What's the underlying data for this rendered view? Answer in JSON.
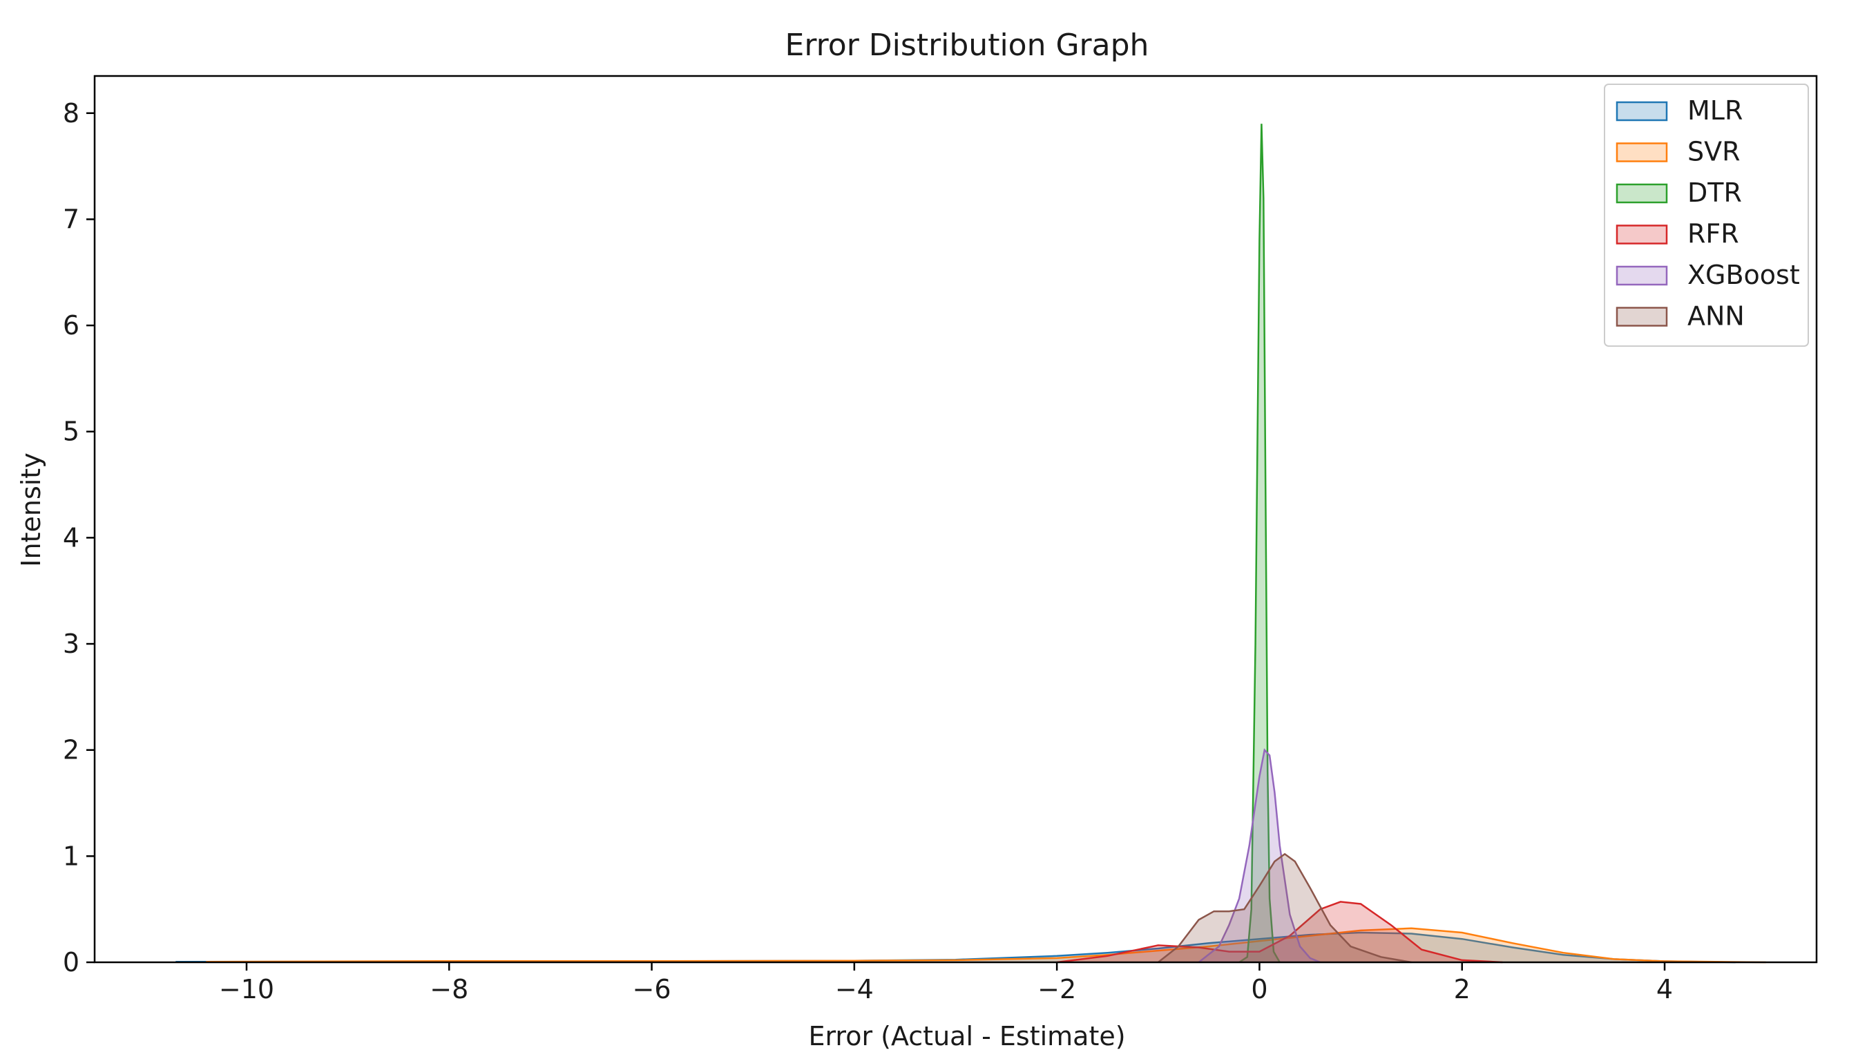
{
  "chart_data": {
    "type": "area",
    "title": "Error Distribution Graph",
    "xlabel": "Error (Actual - Estimate)",
    "ylabel": "Intensity",
    "xlim": [
      -11.5,
      5.5
    ],
    "ylim": [
      0,
      8.35
    ],
    "xticks": [
      -10,
      -8,
      -6,
      -4,
      -2,
      0,
      2,
      4
    ],
    "xtick_labels": [
      "−10",
      "−8",
      "−6",
      "−4",
      "−2",
      "0",
      "2",
      "4"
    ],
    "yticks": [
      0,
      1,
      2,
      3,
      4,
      5,
      6,
      7,
      8
    ],
    "ytick_labels": [
      "0",
      "1",
      "2",
      "3",
      "4",
      "5",
      "6",
      "7",
      "8"
    ],
    "grid": false,
    "legend_position": "top-right",
    "series": [
      {
        "name": "MLR",
        "color": "#1f77b4",
        "x": [
          -10.7,
          -8,
          -6,
          -4,
          -3,
          -2,
          -1.5,
          -1,
          -0.5,
          0,
          0.5,
          1,
          1.5,
          2,
          2.5,
          3,
          3.5,
          4,
          4.7
        ],
        "y": [
          0.005,
          0.008,
          0.01,
          0.015,
          0.025,
          0.06,
          0.09,
          0.13,
          0.18,
          0.22,
          0.26,
          0.28,
          0.27,
          0.22,
          0.14,
          0.07,
          0.03,
          0.01,
          0.0
        ]
      },
      {
        "name": "SVR",
        "color": "#ff7f0e",
        "x": [
          -10.4,
          -8,
          -6,
          -4,
          -3,
          -2,
          -1.5,
          -1,
          -0.5,
          0,
          0.5,
          1,
          1.5,
          2,
          2.5,
          3,
          3.5,
          4,
          5.0
        ],
        "y": [
          0.005,
          0.012,
          0.012,
          0.015,
          0.02,
          0.04,
          0.07,
          0.11,
          0.15,
          0.2,
          0.25,
          0.3,
          0.32,
          0.28,
          0.18,
          0.09,
          0.03,
          0.01,
          0.0
        ]
      },
      {
        "name": "DTR",
        "color": "#2ca02c",
        "x": [
          -0.2,
          -0.12,
          -0.08,
          -0.04,
          0.0,
          0.02,
          0.04,
          0.06,
          0.08,
          0.1,
          0.14,
          0.2
        ],
        "y": [
          0.0,
          0.05,
          0.5,
          3.0,
          6.8,
          7.9,
          7.2,
          4.5,
          1.8,
          0.6,
          0.1,
          0.0
        ]
      },
      {
        "name": "RFR",
        "color": "#d62728",
        "x": [
          -2.0,
          -1.5,
          -1.0,
          -0.6,
          -0.3,
          0.0,
          0.3,
          0.6,
          0.8,
          1.0,
          1.3,
          1.6,
          2.0,
          2.4
        ],
        "y": [
          0.0,
          0.06,
          0.16,
          0.14,
          0.1,
          0.1,
          0.25,
          0.5,
          0.57,
          0.55,
          0.35,
          0.12,
          0.02,
          0.0
        ]
      },
      {
        "name": "XGBoost",
        "color": "#9467bd",
        "x": [
          -0.6,
          -0.4,
          -0.3,
          -0.2,
          -0.1,
          0.0,
          0.05,
          0.1,
          0.15,
          0.2,
          0.3,
          0.4,
          0.5,
          0.6
        ],
        "y": [
          0.0,
          0.15,
          0.35,
          0.6,
          1.1,
          1.75,
          2.0,
          1.95,
          1.6,
          1.1,
          0.45,
          0.15,
          0.04,
          0.0
        ]
      },
      {
        "name": "ANN",
        "color": "#8c564b",
        "x": [
          -1.0,
          -0.8,
          -0.6,
          -0.45,
          -0.3,
          -0.15,
          0.0,
          0.15,
          0.25,
          0.35,
          0.5,
          0.7,
          0.9,
          1.2,
          1.5
        ],
        "y": [
          0.0,
          0.15,
          0.4,
          0.48,
          0.48,
          0.5,
          0.72,
          0.95,
          1.02,
          0.95,
          0.7,
          0.35,
          0.15,
          0.05,
          0.0
        ]
      }
    ]
  }
}
